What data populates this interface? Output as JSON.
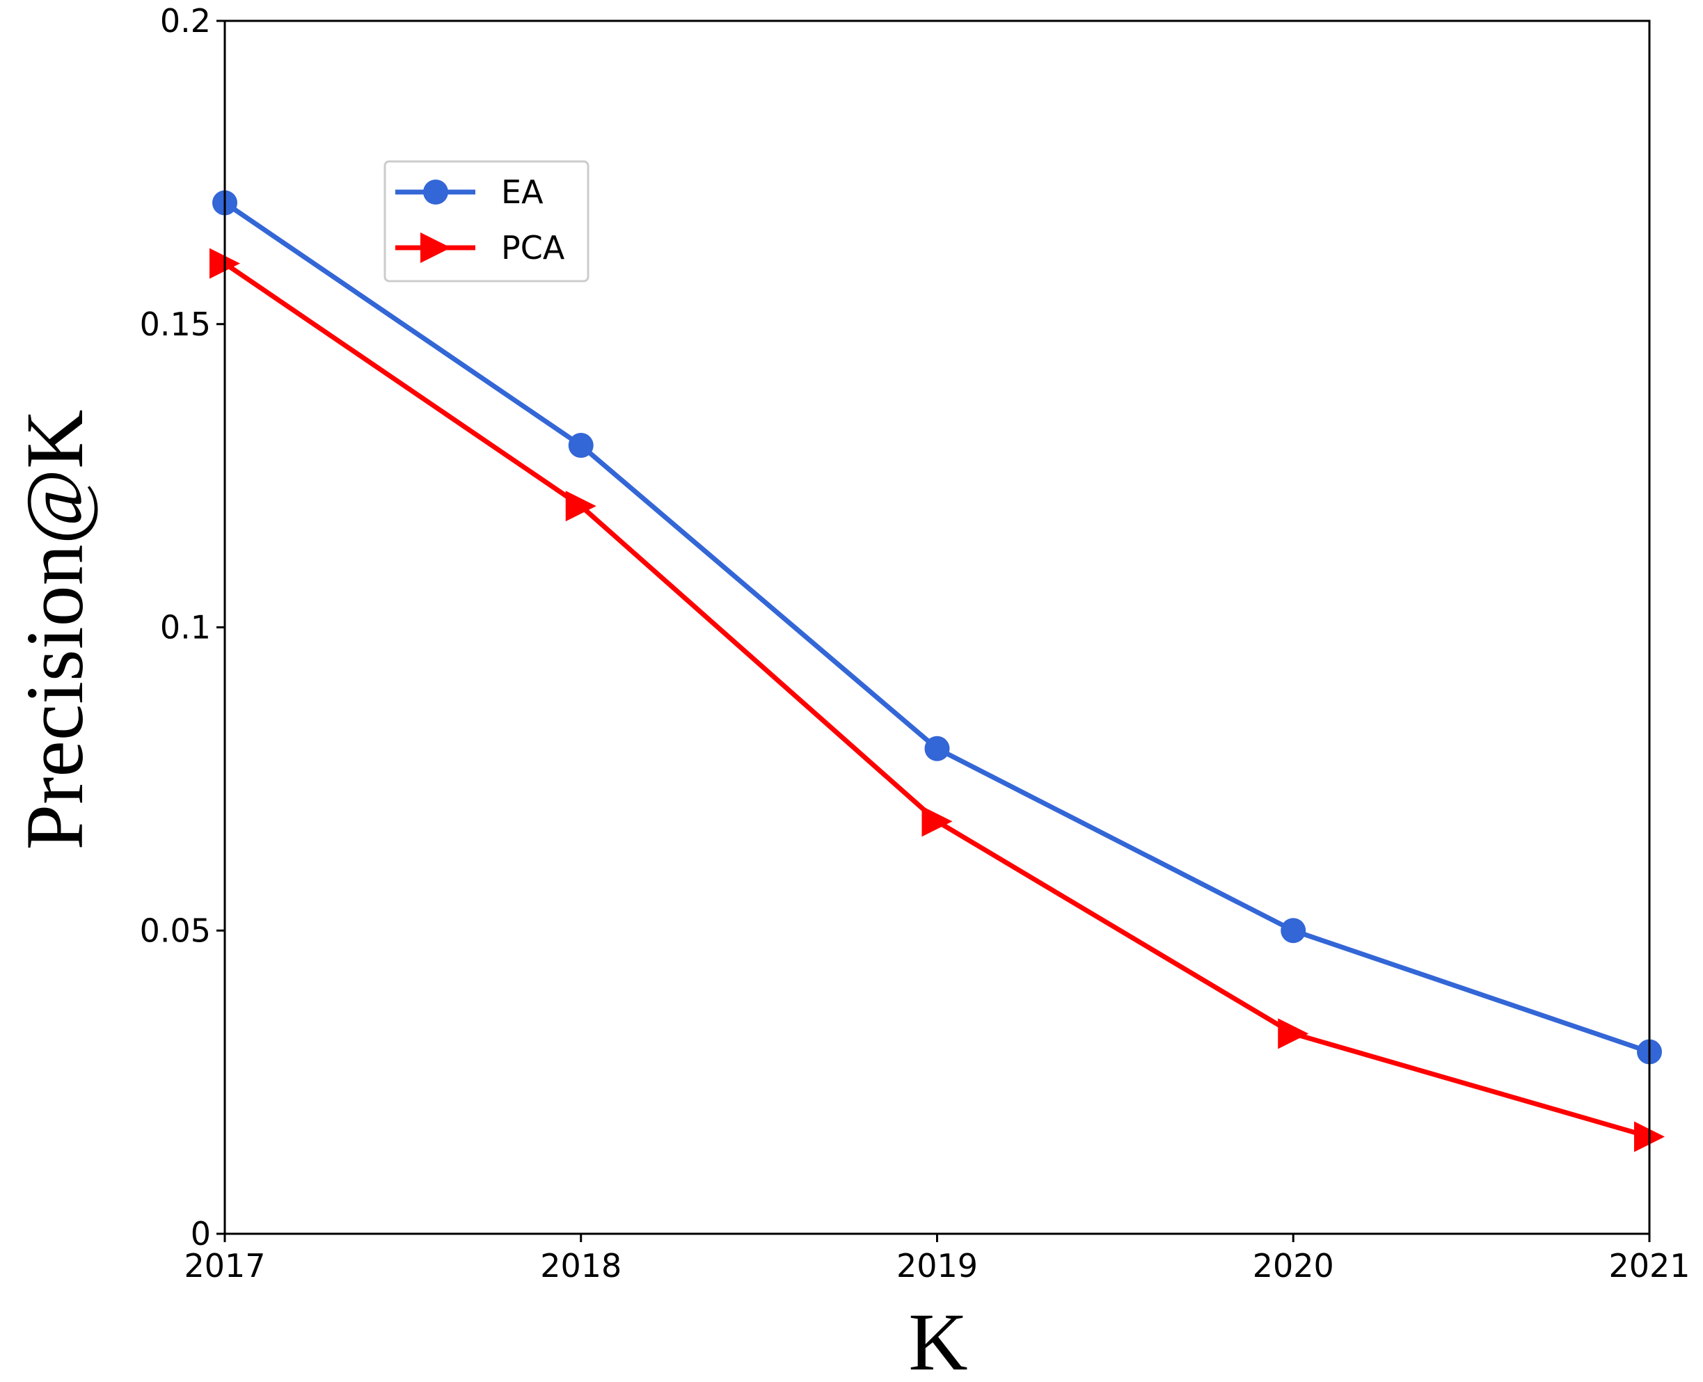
{
  "chart_data": {
    "type": "line",
    "title": "",
    "xlabel": "K",
    "ylabel": "Precision@K",
    "x": [
      2017,
      2018,
      2019,
      2020,
      2021
    ],
    "x_tick_labels": [
      "2017",
      "2018",
      "2019",
      "2020",
      "2021"
    ],
    "y_tick_values": [
      0,
      0.05,
      0.1,
      0.15,
      0.2
    ],
    "y_tick_labels": [
      "0",
      "0.05",
      "0.1",
      "0.15",
      "0.2"
    ],
    "xlim": [
      2017,
      2021
    ],
    "ylim": [
      0,
      0.2
    ],
    "grid": false,
    "legend_position": "upper-left",
    "series": [
      {
        "name": "EA",
        "values": [
          0.17,
          0.13,
          0.08,
          0.05,
          0.03
        ],
        "color": "#3366d6",
        "marker": "circle"
      },
      {
        "name": "PCA",
        "values": [
          0.16,
          0.12,
          0.068,
          0.033,
          0.016
        ],
        "color": "#ff0000",
        "marker": "triangle-right"
      }
    ]
  }
}
